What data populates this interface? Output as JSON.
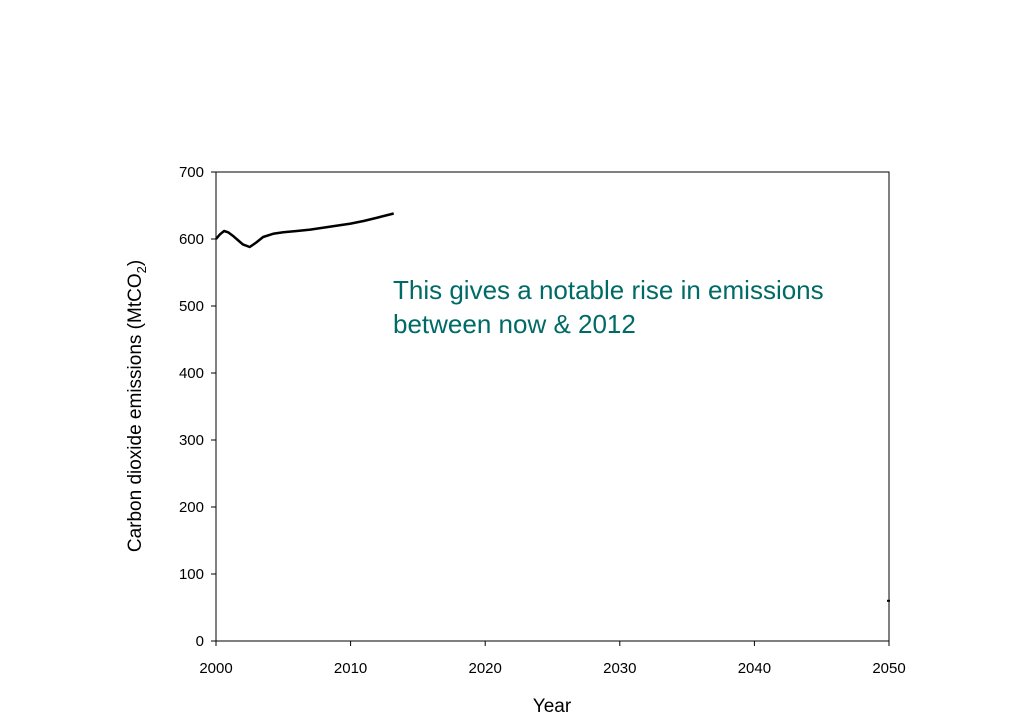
{
  "chart_data": {
    "type": "line",
    "xlabel": "Year",
    "ylabel_main": "Carbon dioxide emissions (MtCO",
    "ylabel_sub": "2",
    "ylabel_end": ")",
    "xlim": [
      2000,
      2050
    ],
    "ylim": [
      0,
      700
    ],
    "xticks": [
      2000,
      2010,
      2020,
      2030,
      2040,
      2050
    ],
    "yticks": [
      0,
      100,
      200,
      300,
      400,
      500,
      600,
      700
    ],
    "grid": false,
    "series": [
      {
        "x": [
          2000,
          2000.3,
          2000.6,
          2000.9,
          2001.3,
          2001.7,
          2002,
          2002.5,
          2003,
          2003.5,
          2004.3,
          2005,
          2006,
          2007,
          2008,
          2009,
          2010,
          2011,
          2012,
          2013.2
        ],
        "y": [
          600,
          607,
          612,
          610,
          604,
          597,
          592,
          588,
          595,
          603,
          608,
          610,
          612,
          614,
          617,
          620,
          623,
          627,
          632,
          638
        ]
      },
      {
        "x": [
          2050
        ],
        "y": [
          60
        ]
      }
    ],
    "color": "#000000",
    "annotation": {
      "line1": "This gives a notable rise in emissions",
      "line2": "between now & 2012",
      "color": "#006a66"
    }
  }
}
